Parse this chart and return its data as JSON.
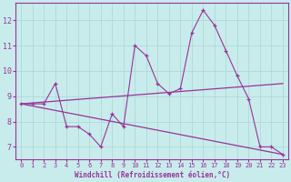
{
  "xlabel": "Windchill (Refroidissement éolien,°C)",
  "background_color": "#c8ecec",
  "grid_color": "#b0d8d8",
  "line_color": "#993399",
  "xlim": [
    -0.5,
    23.5
  ],
  "ylim": [
    6.5,
    12.7
  ],
  "yticks": [
    7,
    8,
    9,
    10,
    11,
    12
  ],
  "xticks": [
    0,
    1,
    2,
    3,
    4,
    5,
    6,
    7,
    8,
    9,
    10,
    11,
    12,
    13,
    14,
    15,
    16,
    17,
    18,
    19,
    20,
    21,
    22,
    23
  ],
  "data_y": [
    8.7,
    8.7,
    8.7,
    9.5,
    7.8,
    7.8,
    7.5,
    7.0,
    8.3,
    7.8,
    11.0,
    10.6,
    9.5,
    9.1,
    9.3,
    11.5,
    12.4,
    11.8,
    10.8,
    9.8,
    8.9,
    7.0,
    7.0,
    6.7
  ],
  "trend1_y_start": 8.7,
  "trend1_y_end": 9.5,
  "trend2_y_start": 8.7,
  "trend2_y_end": 6.7,
  "marker": "+"
}
